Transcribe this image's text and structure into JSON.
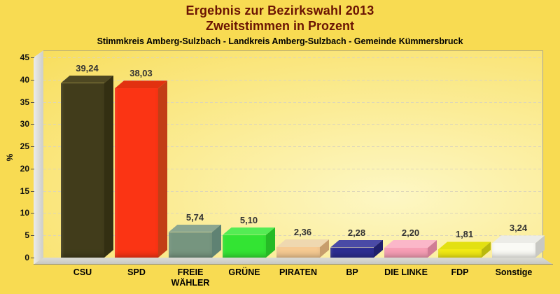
{
  "header": {
    "title_line1": "Ergebnis zur Bezirkswahl 2013",
    "title_line2": "Zweitstimmen in Prozent",
    "subtitle": "Stimmkreis Amberg-Sulzbach - Landkreis Amberg-Sulzbach - Gemeinde Kümmersbruck"
  },
  "colors": {
    "page_background": "#F8DB52",
    "title_text": "#6B1403",
    "subtitle_text": "#000000",
    "value_label_text": "#333333",
    "gridline": "#DCD5BA",
    "wall": "#D6D6D0",
    "floor": "#CFCFC9"
  },
  "chart_data": {
    "type": "bar",
    "title": "Ergebnis zur Bezirkswahl 2013",
    "subtitle": "Zweitstimmen in Prozent",
    "caption": "Stimmkreis Amberg-Sulzbach - Landkreis Amberg-Sulzbach - Gemeinde Kümmersbruck",
    "xlabel": "",
    "ylabel": "%",
    "ylim": [
      0,
      45
    ],
    "ytick_step": 5,
    "yticks": [
      0,
      5,
      10,
      15,
      20,
      25,
      30,
      35,
      40,
      45
    ],
    "grid": "horizontal-dashed",
    "style": "3d-bars",
    "legend_position": "none",
    "categories": [
      "CSU",
      "SPD",
      "FREIE WÄHLER",
      "GRÜNE",
      "PIRATEN",
      "BP",
      "DIE LINKE",
      "FDP",
      "Sonstige"
    ],
    "values": [
      39.24,
      38.03,
      5.74,
      5.1,
      2.36,
      2.28,
      2.2,
      1.81,
      3.24
    ],
    "value_labels": [
      "39,24",
      "38,03",
      "5,74",
      "5,10",
      "2,36",
      "2,28",
      "2,20",
      "1,81",
      "3,24"
    ],
    "bar_colors": [
      {
        "front": "#413C1B",
        "top": "#4E4822",
        "side": "#332F12"
      },
      {
        "front": "#FB3414",
        "top": "#E23110",
        "side": "#C23E16"
      },
      {
        "front": "#76957F",
        "top": "#8BA690",
        "side": "#5F8273"
      },
      {
        "front": "#33E433",
        "top": "#54EC54",
        "side": "#26BA26"
      },
      {
        "front": "#F6CA92",
        "top": "#EFD8B0",
        "side": "#C79E6C"
      },
      {
        "front": "#2D2D91",
        "top": "#4A4AA6",
        "side": "#20206C"
      },
      {
        "front": "#F79EB5",
        "top": "#FBB7C9",
        "side": "#D07C95"
      },
      {
        "front": "#F2EB14",
        "top": "#E3E012",
        "side": "#B9B90D"
      },
      {
        "front": "#FAFAF5",
        "top": "#ECECE7",
        "side": "#C8C8C3"
      }
    ]
  }
}
